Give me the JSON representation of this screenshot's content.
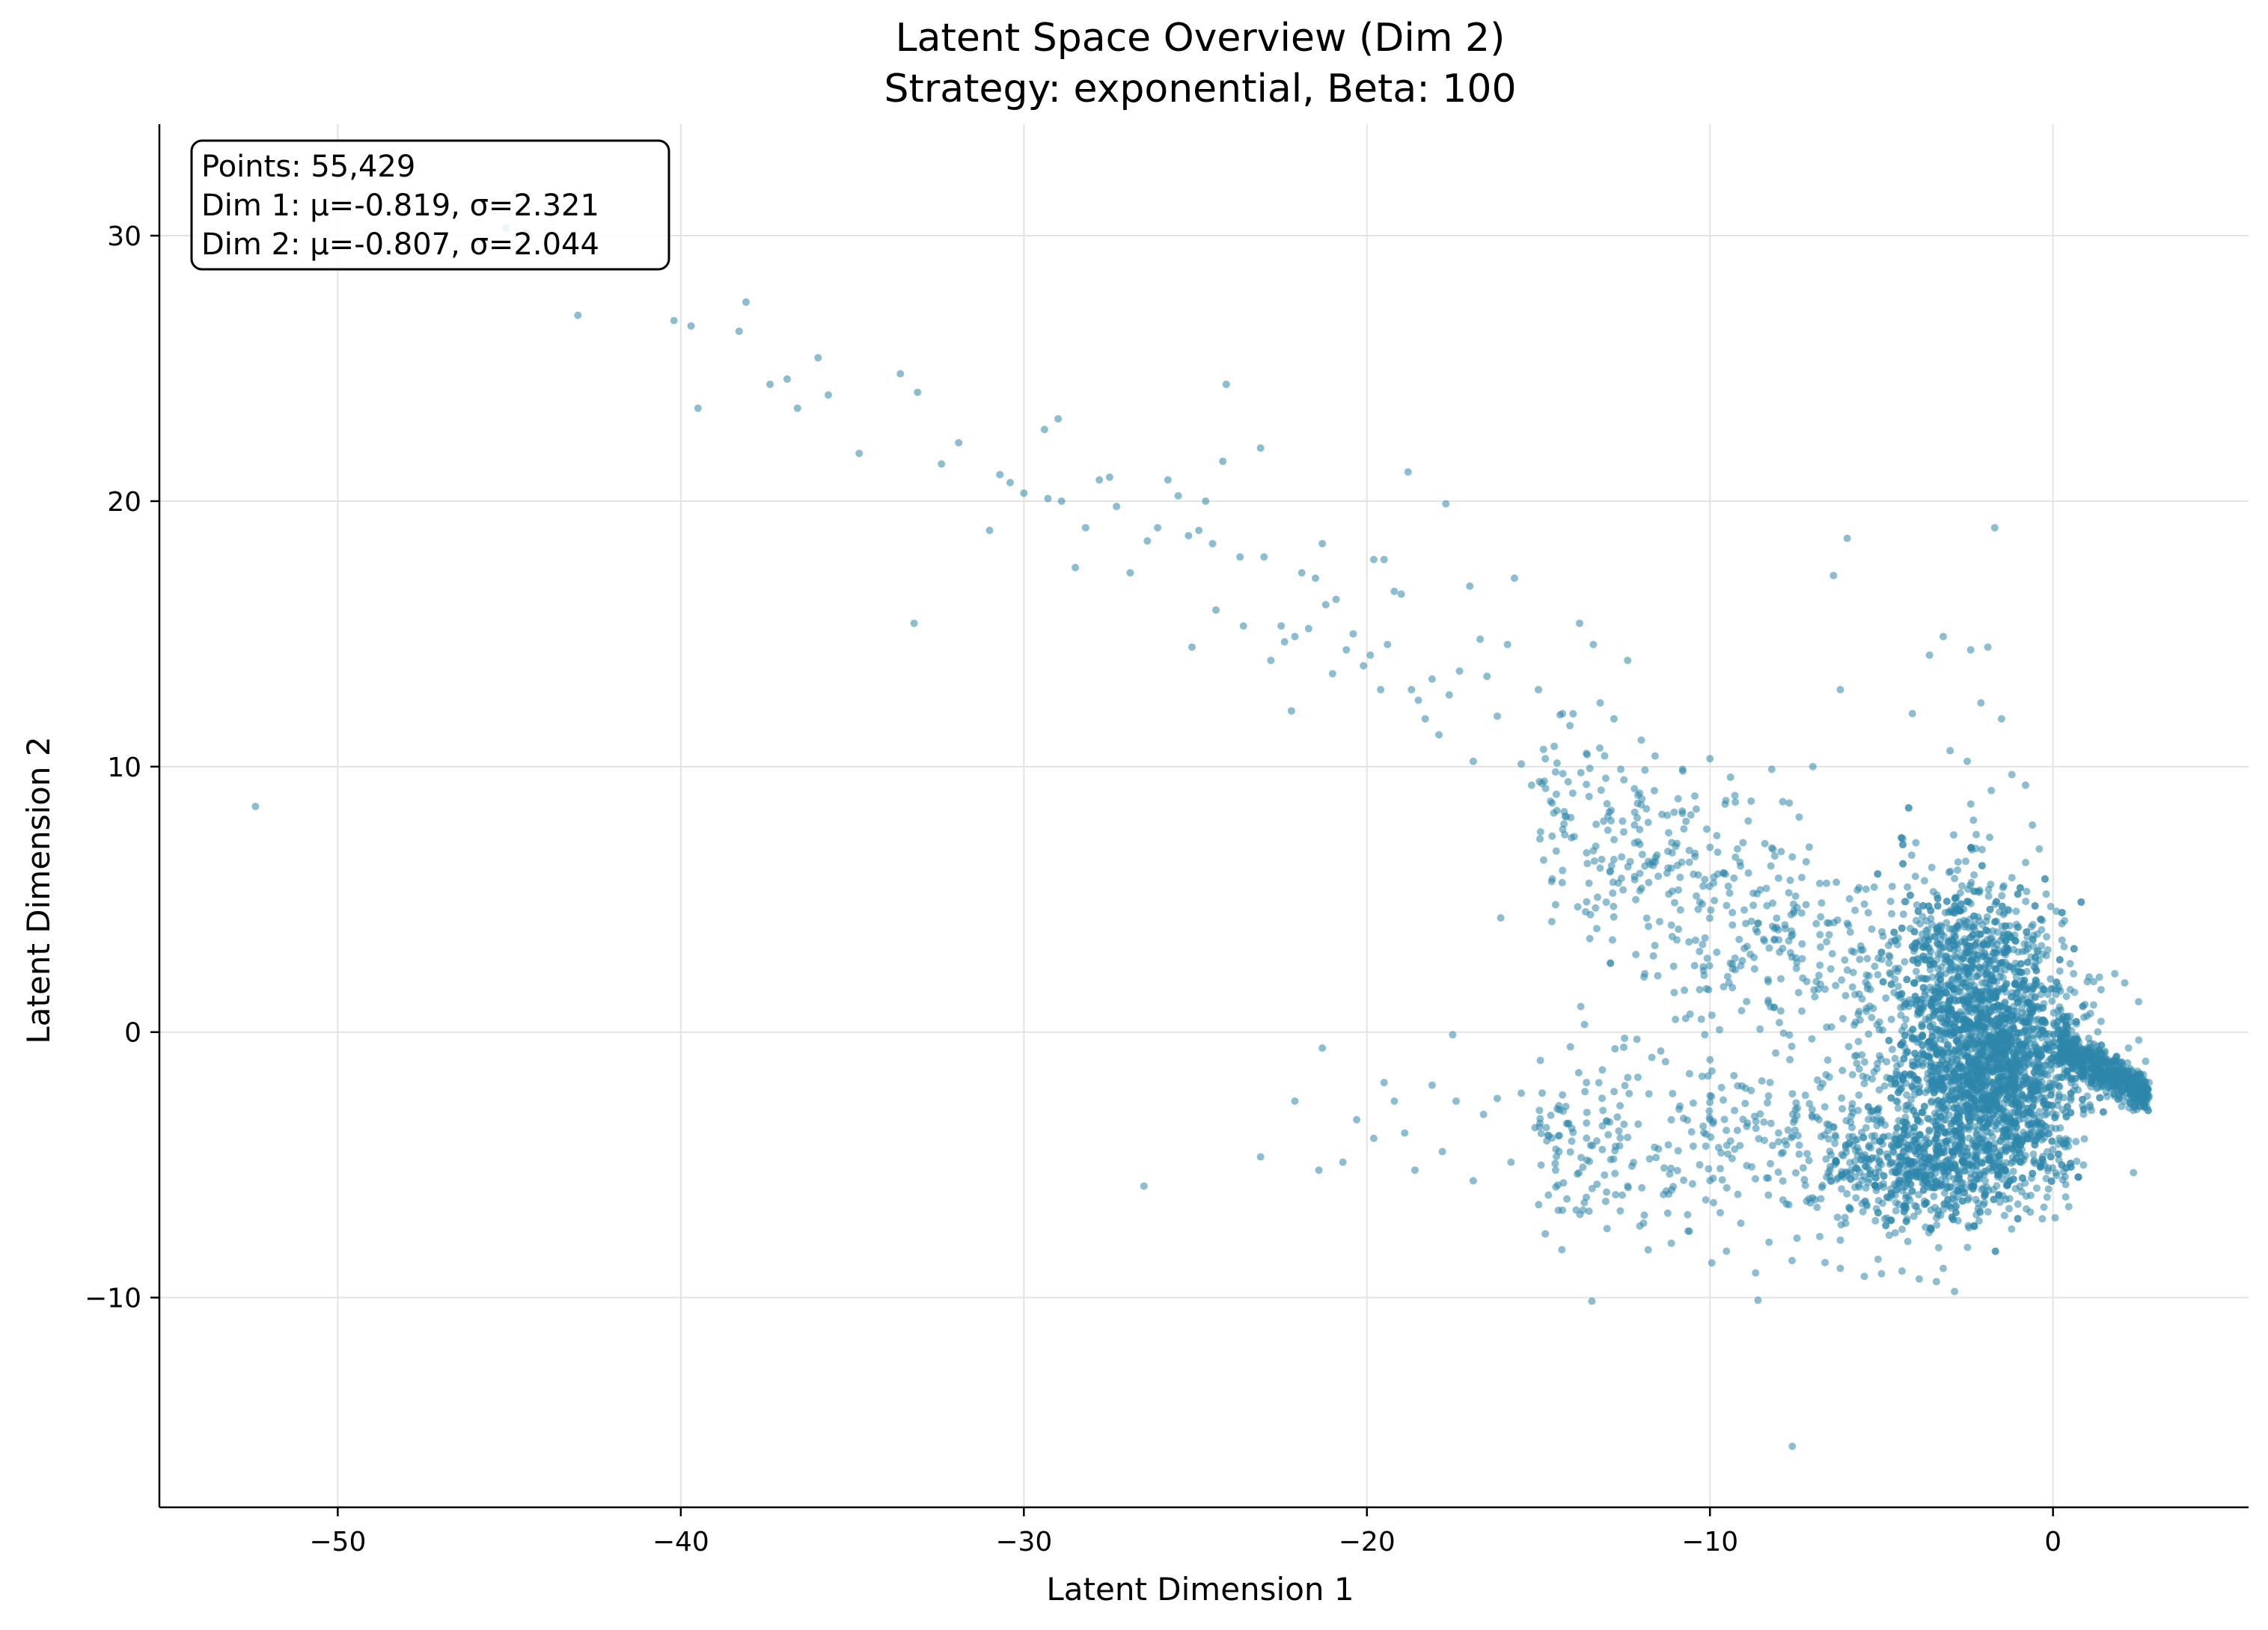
{
  "chart_data": {
    "type": "scatter",
    "title": "Latent Space Overview (Dim 2)",
    "subtitle": "Strategy: exponential, Beta: 100",
    "xlabel": "Latent Dimension 1",
    "ylabel": "Latent Dimension 2",
    "xlim": [
      -55.2,
      5.7
    ],
    "ylim": [
      -17.9,
      34.2
    ],
    "xticks": [
      -50,
      -40,
      -30,
      -20,
      -10,
      0
    ],
    "yticks": [
      -10,
      0,
      10,
      20,
      30
    ],
    "xtick_labels": [
      "−50",
      "−40",
      "−30",
      "−20",
      "−10",
      "0"
    ],
    "ytick_labels": [
      "−10",
      "0",
      "10",
      "20",
      "30"
    ],
    "grid": true,
    "marker_color": "#2e86ab",
    "marker_alpha": 0.55,
    "stats_box": {
      "lines": [
        "Points: 55,429",
        "Dim 1: μ=-0.819, σ=2.321",
        "Dim 2: μ=-0.807, σ=2.044"
      ],
      "placement": "top-left"
    },
    "series": [
      {
        "points": [
          [
            -52.4,
            8.5
          ],
          [
            -45.1,
            30.3
          ],
          [
            -44.8,
            31.6
          ],
          [
            -44.5,
            30.1
          ],
          [
            -43.0,
            27.0
          ],
          [
            -40.2,
            26.8
          ],
          [
            -39.7,
            26.6
          ],
          [
            -39.5,
            23.5
          ],
          [
            -38.3,
            26.4
          ],
          [
            -38.1,
            27.5
          ],
          [
            -37.4,
            24.4
          ],
          [
            -36.9,
            24.6
          ],
          [
            -36.6,
            23.5
          ],
          [
            -36.0,
            25.4
          ],
          [
            -35.7,
            24.0
          ],
          [
            -34.8,
            21.8
          ],
          [
            -33.6,
            24.8
          ],
          [
            -33.2,
            15.4
          ],
          [
            -33.1,
            24.1
          ],
          [
            -32.4,
            21.4
          ],
          [
            -31.9,
            22.2
          ],
          [
            -31.0,
            18.9
          ],
          [
            -30.7,
            21.0
          ],
          [
            -30.4,
            20.7
          ],
          [
            -30.0,
            20.3
          ],
          [
            -29.4,
            22.7
          ],
          [
            -29.3,
            20.1
          ],
          [
            -29.0,
            23.1
          ],
          [
            -28.9,
            20.0
          ],
          [
            -28.5,
            17.5
          ],
          [
            -28.2,
            19.0
          ],
          [
            -27.8,
            20.8
          ],
          [
            -27.5,
            20.9
          ],
          [
            -27.3,
            19.8
          ],
          [
            -26.9,
            17.3
          ],
          [
            -26.4,
            18.5
          ],
          [
            -26.1,
            19.0
          ],
          [
            -25.8,
            20.8
          ],
          [
            -25.5,
            20.2
          ],
          [
            -25.2,
            18.7
          ],
          [
            -25.1,
            14.5
          ],
          [
            -24.9,
            18.9
          ],
          [
            -24.7,
            20.0
          ],
          [
            -24.5,
            18.4
          ],
          [
            -24.4,
            15.9
          ],
          [
            -24.2,
            21.5
          ],
          [
            -24.1,
            24.4
          ],
          [
            -23.7,
            17.9
          ],
          [
            -23.6,
            15.3
          ],
          [
            -23.1,
            22.0
          ],
          [
            -23.0,
            17.9
          ],
          [
            -22.8,
            14.0
          ],
          [
            -22.5,
            15.3
          ],
          [
            -22.4,
            14.7
          ],
          [
            -22.2,
            12.1
          ],
          [
            -22.1,
            14.9
          ],
          [
            -21.9,
            17.3
          ],
          [
            -21.7,
            15.2
          ],
          [
            -21.5,
            17.1
          ],
          [
            -21.3,
            18.4
          ],
          [
            -21.2,
            16.1
          ],
          [
            -21.0,
            13.5
          ],
          [
            -20.9,
            16.3
          ],
          [
            -20.6,
            14.4
          ],
          [
            -20.4,
            15.0
          ],
          [
            -20.1,
            13.8
          ],
          [
            -19.9,
            14.2
          ],
          [
            -19.8,
            17.8
          ],
          [
            -19.6,
            12.9
          ],
          [
            -19.5,
            17.8
          ],
          [
            -19.4,
            14.6
          ],
          [
            -19.2,
            16.6
          ],
          [
            -19.0,
            16.5
          ],
          [
            -18.8,
            21.1
          ],
          [
            -18.7,
            12.9
          ],
          [
            -18.5,
            12.5
          ],
          [
            -18.3,
            11.8
          ],
          [
            -18.1,
            13.3
          ],
          [
            -17.9,
            11.2
          ],
          [
            -17.7,
            19.9
          ],
          [
            -17.6,
            12.7
          ],
          [
            -17.3,
            13.6
          ],
          [
            -17.0,
            16.8
          ],
          [
            -16.9,
            10.2
          ],
          [
            -16.7,
            14.8
          ],
          [
            -16.5,
            13.4
          ],
          [
            -16.2,
            11.9
          ],
          [
            -16.1,
            4.3
          ],
          [
            -15.9,
            14.6
          ],
          [
            -15.7,
            17.1
          ],
          [
            -15.5,
            10.1
          ],
          [
            -15.2,
            9.3
          ],
          [
            -15.0,
            12.9
          ],
          [
            -14.8,
            10.3
          ],
          [
            -14.5,
            9.8
          ],
          [
            -14.3,
            12.0
          ],
          [
            -14.0,
            9.0
          ],
          [
            -13.8,
            15.4
          ],
          [
            -13.6,
            10.5
          ],
          [
            -13.4,
            14.6
          ],
          [
            -13.2,
            12.4
          ],
          [
            -13.0,
            8.6
          ],
          [
            -12.8,
            11.8
          ],
          [
            -12.6,
            9.9
          ],
          [
            -12.4,
            14.0
          ],
          [
            -12.2,
            7.8
          ],
          [
            -12.0,
            11.0
          ],
          [
            -11.8,
            7.9
          ],
          [
            -11.6,
            10.4
          ],
          [
            -11.4,
            8.2
          ],
          [
            -11.2,
            5.2
          ],
          [
            -11.0,
            7.0
          ],
          [
            -10.8,
            9.9
          ],
          [
            -10.6,
            6.4
          ],
          [
            -10.4,
            8.4
          ],
          [
            -10.2,
            5.5
          ],
          [
            -10.0,
            10.3
          ],
          [
            -9.8,
            7.4
          ],
          [
            -9.6,
            6.0
          ],
          [
            -9.4,
            9.6
          ],
          [
            -9.2,
            6.9
          ],
          [
            -9.0,
            4.6
          ],
          [
            -8.8,
            8.7
          ],
          [
            -8.6,
            4.1
          ],
          [
            -8.4,
            7.1
          ],
          [
            -8.2,
            9.9
          ],
          [
            -8.0,
            5.8
          ],
          [
            -7.8,
            3.9
          ],
          [
            -7.6,
            6.6
          ],
          [
            -7.4,
            8.1
          ],
          [
            -7.2,
            4.8
          ],
          [
            -7.0,
            10.0
          ],
          [
            -6.8,
            5.6
          ],
          [
            -6.6,
            3.4
          ],
          [
            -6.4,
            17.2
          ],
          [
            -6.2,
            12.9
          ],
          [
            -6.0,
            18.6
          ],
          [
            -14.5,
            4.8
          ],
          [
            -13.3,
            3.9
          ],
          [
            -12.9,
            2.6
          ],
          [
            -11.9,
            2.2
          ],
          [
            -11.1,
            3.6
          ],
          [
            -10.3,
            1.6
          ],
          [
            -9.1,
            2.5
          ],
          [
            -8.3,
            1.2
          ],
          [
            -7.5,
            2.8
          ],
          [
            -6.9,
            1.9
          ],
          [
            -21.3,
            -0.6
          ],
          [
            -17.5,
            -0.1
          ],
          [
            -26.5,
            -5.8
          ],
          [
            -23.1,
            -4.7
          ],
          [
            -22.1,
            -2.6
          ],
          [
            -21.4,
            -5.2
          ],
          [
            -20.7,
            -4.9
          ],
          [
            -20.3,
            -3.3
          ],
          [
            -19.8,
            -4.0
          ],
          [
            -19.5,
            -1.9
          ],
          [
            -19.2,
            -2.6
          ],
          [
            -18.9,
            -3.8
          ],
          [
            -18.6,
            -5.2
          ],
          [
            -18.1,
            -2.0
          ],
          [
            -17.8,
            -4.5
          ],
          [
            -17.4,
            -2.6
          ],
          [
            -16.9,
            -5.6
          ],
          [
            -16.6,
            -3.1
          ],
          [
            -16.2,
            -2.5
          ],
          [
            -15.8,
            -4.9
          ],
          [
            -15.5,
            -2.3
          ],
          [
            -15.1,
            -3.6
          ],
          [
            -14.8,
            -7.6
          ],
          [
            -14.5,
            -5.2
          ],
          [
            -14.2,
            -2.8
          ],
          [
            -13.9,
            -6.7
          ],
          [
            -13.6,
            -1.9
          ],
          [
            -13.3,
            -4.1
          ],
          [
            -13.0,
            -7.4
          ],
          [
            -12.7,
            -3.2
          ],
          [
            -12.4,
            -5.8
          ],
          [
            -12.1,
            -1.7
          ],
          [
            -11.8,
            -8.2
          ],
          [
            -11.5,
            -4.4
          ],
          [
            -11.2,
            -6.1
          ],
          [
            -10.9,
            -2.9
          ],
          [
            -10.6,
            -7.5
          ],
          [
            -10.3,
            -5.0
          ],
          [
            -10.0,
            -3.3
          ],
          [
            -9.7,
            -6.8
          ],
          [
            -9.4,
            -4.1
          ],
          [
            -9.1,
            -7.2
          ],
          [
            -8.8,
            -2.2
          ],
          [
            -8.6,
            -10.1
          ],
          [
            -8.3,
            -5.5
          ],
          [
            -8.0,
            -3.8
          ],
          [
            -7.7,
            -6.5
          ],
          [
            -7.6,
            -15.6
          ],
          [
            -7.4,
            -4.6
          ],
          [
            -7.1,
            -2.7
          ],
          [
            -6.8,
            -7.7
          ],
          [
            -6.5,
            -5.2
          ],
          [
            -6.2,
            -8.9
          ],
          [
            -5.9,
            -3.4
          ],
          [
            -5.5,
            -9.2
          ],
          [
            -5.0,
            -9.1
          ],
          [
            -4.4,
            -9.0
          ],
          [
            -3.9,
            -9.3
          ],
          [
            -3.4,
            -9.4
          ],
          [
            -3.2,
            -8.9
          ],
          [
            -3.2,
            14.9
          ],
          [
            -2.4,
            14.4
          ],
          [
            -1.9,
            14.5
          ],
          [
            -1.7,
            19.0
          ],
          [
            -2.1,
            12.4
          ],
          [
            -1.5,
            11.8
          ],
          [
            -3.6,
            14.2
          ],
          [
            -4.1,
            12.0
          ],
          [
            -3.0,
            10.6
          ],
          [
            -2.5,
            10.2
          ],
          [
            -1.8,
            9.1
          ],
          [
            -1.2,
            9.7
          ],
          [
            -0.8,
            9.3
          ],
          [
            -0.6,
            7.8
          ],
          [
            -0.4,
            6.9
          ],
          [
            -0.2,
            5.2
          ],
          [
            0.2,
            2.3
          ],
          [
            0.6,
            2.2
          ],
          [
            1.0,
            1.9
          ],
          [
            1.4,
            1.6
          ],
          [
            1.8,
            2.2
          ],
          [
            2.2,
            -0.6
          ],
          [
            2.5,
            -0.3
          ],
          [
            2.7,
            -1.1
          ],
          [
            2.8,
            -1.9
          ],
          [
            2.6,
            -2.2
          ],
          [
            2.3,
            -2.5
          ],
          [
            2.0,
            -2.8
          ]
        ]
      }
    ]
  }
}
